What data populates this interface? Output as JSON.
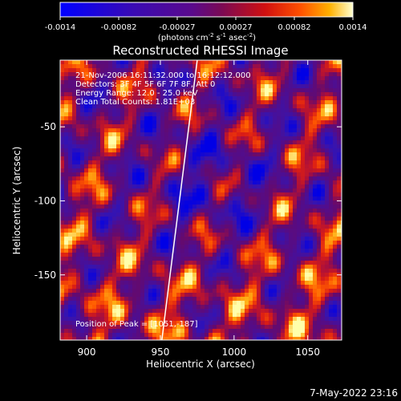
{
  "chart_data": {
    "type": "heatmap",
    "title": "Reconstructed RHESSI Image",
    "xlabel": "Heliocentric X (arcsec)",
    "ylabel": "Heliocentric Y (arcsec)",
    "xlim": [
      882,
      1073
    ],
    "ylim": [
      -194,
      -5
    ],
    "x_ticks": [
      900,
      950,
      1000,
      1050
    ],
    "y_ticks": [
      -50,
      -100,
      -150
    ],
    "colorbar": {
      "range": [
        -0.0014,
        0.0014
      ],
      "tick_labels": [
        "-0.0014",
        "-0.00082",
        "-0.00027",
        "0.00027",
        "0.00082",
        "0.0014"
      ],
      "unit_label": "(photons cm",
      "unit_sup1": "-2",
      "unit_mid": " s",
      "unit_sup2": "-1",
      "unit_mid2": " asec",
      "unit_sup3": "-2",
      "unit_end": ")"
    },
    "annotations": [
      "21-Nov-2006 16:11:32.000 to 16:12:12.000",
      "Detectors: 3F 4F 5F 6F 7F 8F, Att 0",
      "Energy Range: 12.0 - 25.0 keV",
      "Clean    Total Counts: 1.81E+03"
    ],
    "peak_label": "Position of Peak = [1051,-187]",
    "peak": [
      1051,
      -187
    ],
    "limb_line": [
      [
        951,
        -194
      ],
      [
        975,
        -5
      ]
    ]
  },
  "footer": {
    "timestamp": "7-May-2022 23:16"
  },
  "colors": {
    "background": "#000000",
    "text": "#ffffff",
    "bar_negative": "#0000ff",
    "bar_zero": "#5a0a8c",
    "bar_positive_mid": "#ff3000",
    "bar_positive_high": "#ffff80"
  }
}
